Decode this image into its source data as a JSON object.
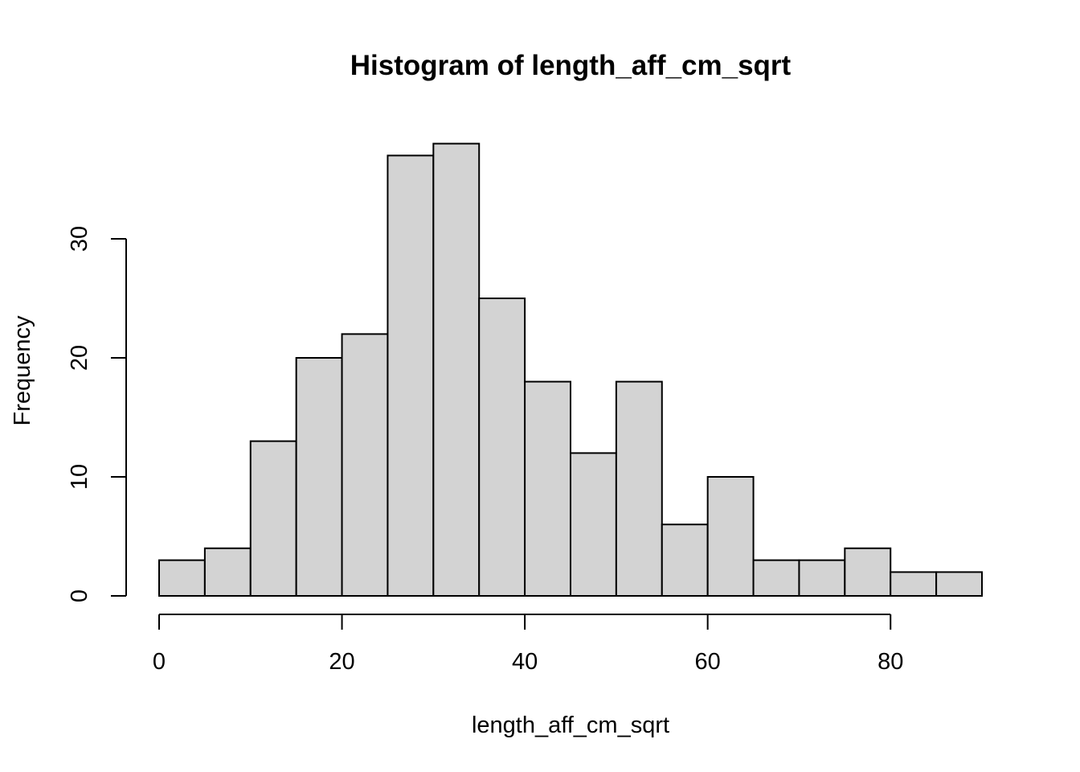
{
  "chart_data": {
    "type": "bar",
    "title": "Histogram of length_aff_cm_sqrt",
    "xlabel": "length_aff_cm_sqrt",
    "ylabel": "Frequency",
    "bin_edges": [
      0,
      5,
      10,
      15,
      20,
      25,
      30,
      35,
      40,
      45,
      50,
      55,
      60,
      65,
      70,
      75,
      80,
      85,
      90
    ],
    "values": [
      3,
      4,
      13,
      20,
      22,
      37,
      38,
      25,
      18,
      12,
      18,
      6,
      10,
      3,
      3,
      4,
      2,
      2
    ],
    "xlim": [
      0,
      90
    ],
    "ylim": [
      0,
      38
    ],
    "x_ticks": [
      0,
      20,
      40,
      60,
      80
    ],
    "y_ticks": [
      0,
      10,
      20,
      30
    ],
    "bar_fill": "#d3d3d3",
    "bar_stroke": "#000000",
    "grid": false,
    "legend": "none"
  }
}
